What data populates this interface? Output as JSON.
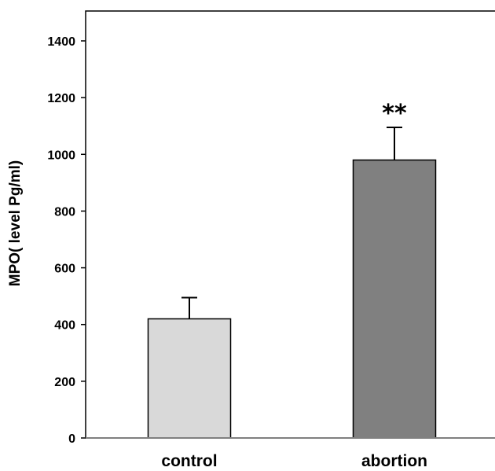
{
  "chart_data": {
    "type": "bar",
    "title": "",
    "xlabel": "",
    "ylabel": "MPO( level Pg/ml)",
    "categories": [
      "control",
      "abortion"
    ],
    "values": [
      420,
      980
    ],
    "error_plus": [
      75,
      115
    ],
    "ylim": [
      0,
      1400
    ],
    "yticks": [
      0,
      200,
      400,
      600,
      800,
      1000,
      1200,
      1400
    ],
    "grid": false,
    "legend": "none",
    "bar_colors": [
      "#d9d9d9",
      "#808080"
    ],
    "annotations": [
      {
        "category": "abortion",
        "text": "**"
      }
    ]
  }
}
